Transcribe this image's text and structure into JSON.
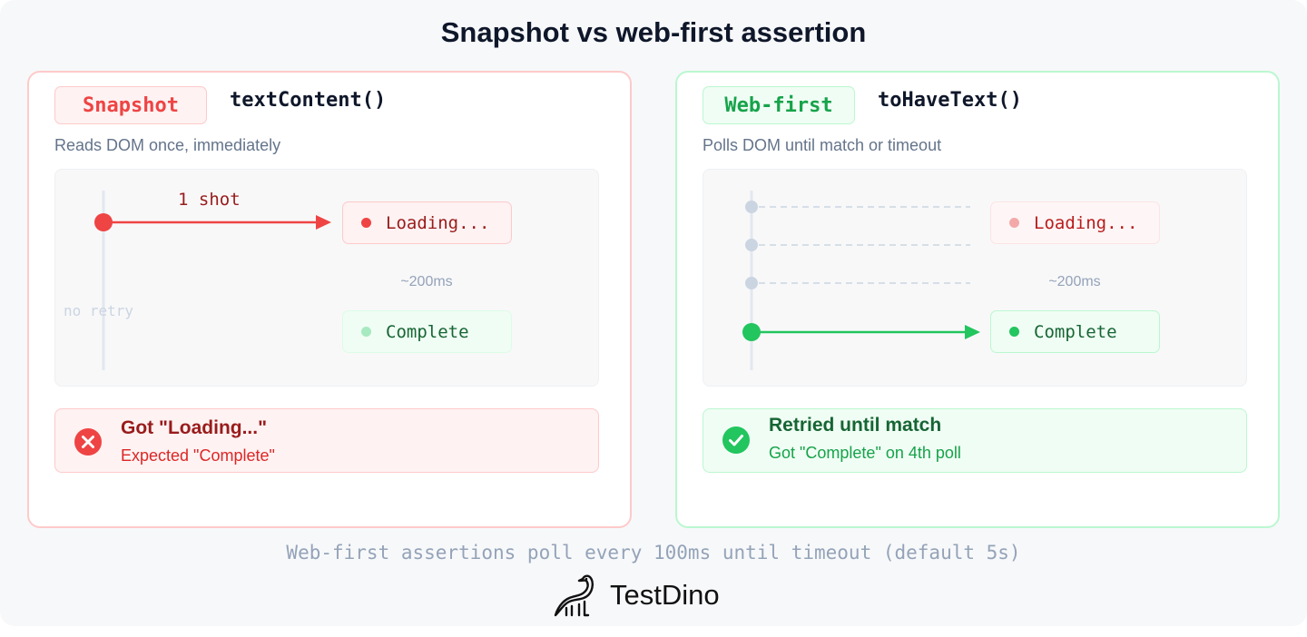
{
  "title": "Snapshot vs web-first assertion",
  "left": {
    "badge": "Snapshot",
    "method": "textContent()",
    "description": "Reads DOM once, immediately",
    "shot_label": "1 shot",
    "no_retry_label": "no retry",
    "state_loading": "Loading...",
    "state_complete": "Complete",
    "delay": "~200ms",
    "result_title": "Got \"Loading...\"",
    "result_subtitle": "Expected \"Complete\"",
    "result_icon": "x-circle-icon",
    "accent": "#ef4444"
  },
  "right": {
    "badge": "Web-first",
    "method": "toHaveText()",
    "description": "Polls DOM until match or timeout",
    "state_loading": "Loading...",
    "state_complete": "Complete",
    "delay": "~200ms",
    "result_title": "Retried until match",
    "result_subtitle": "Got \"Complete\" on 4th poll",
    "result_icon": "check-circle-icon",
    "accent": "#22c55e"
  },
  "footer": "Web-first assertions poll every 100ms until timeout (default 5s)",
  "logo": "TestDino"
}
